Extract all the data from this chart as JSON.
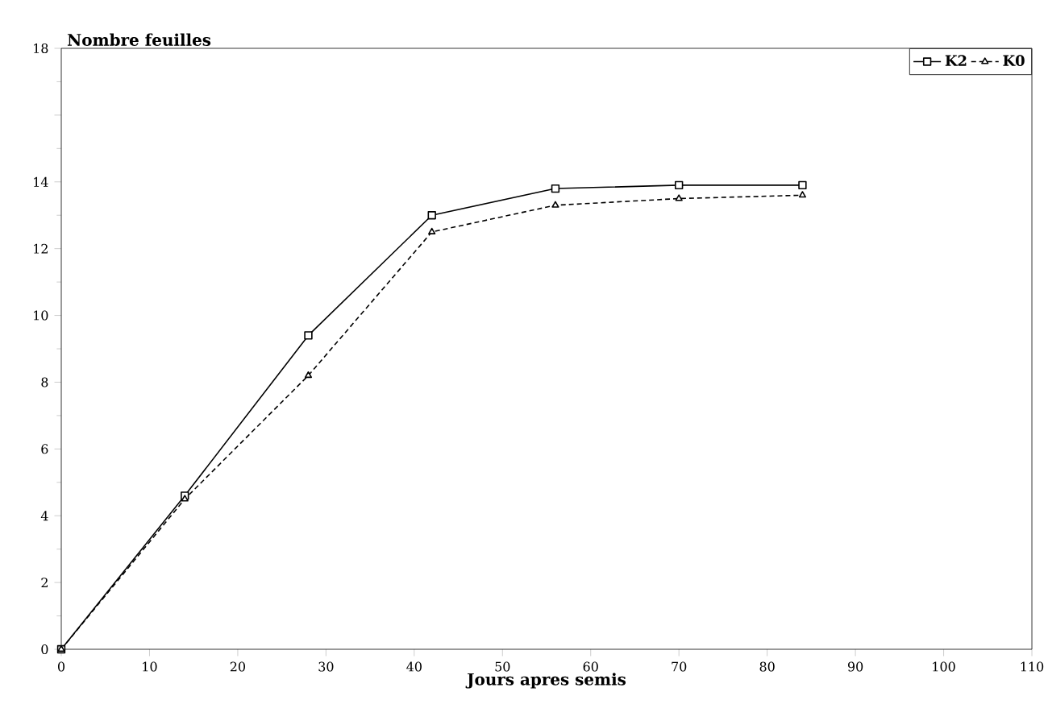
{
  "chart_data": {
    "type": "line",
    "xlabel": "Jours apres semis",
    "ylabel": "Nombre feuilles",
    "x": [
      0,
      14,
      28,
      42,
      56,
      70,
      84
    ],
    "series": [
      {
        "name": "K2",
        "color": "#000000",
        "marker": "square",
        "line_style": "solid",
        "values": [
          0,
          4.6,
          9.4,
          13.0,
          13.8,
          13.9,
          13.9
        ]
      },
      {
        "name": "K0",
        "color": "#000000",
        "marker": "triangle",
        "line_style": "dotted",
        "values": [
          0,
          4.5,
          8.2,
          12.5,
          13.3,
          13.5,
          13.6
        ]
      }
    ],
    "xlim": [
      0,
      110
    ],
    "xticks": [
      0,
      10,
      20,
      30,
      40,
      50,
      60,
      70,
      80,
      90,
      100,
      110
    ],
    "ylim": [
      0,
      18
    ],
    "yticks": [
      0,
      2,
      4,
      6,
      8,
      10,
      12,
      14,
      {
        "value": 16,
        "label": null
      },
      18
    ],
    "grid": false,
    "legend": "top right"
  }
}
